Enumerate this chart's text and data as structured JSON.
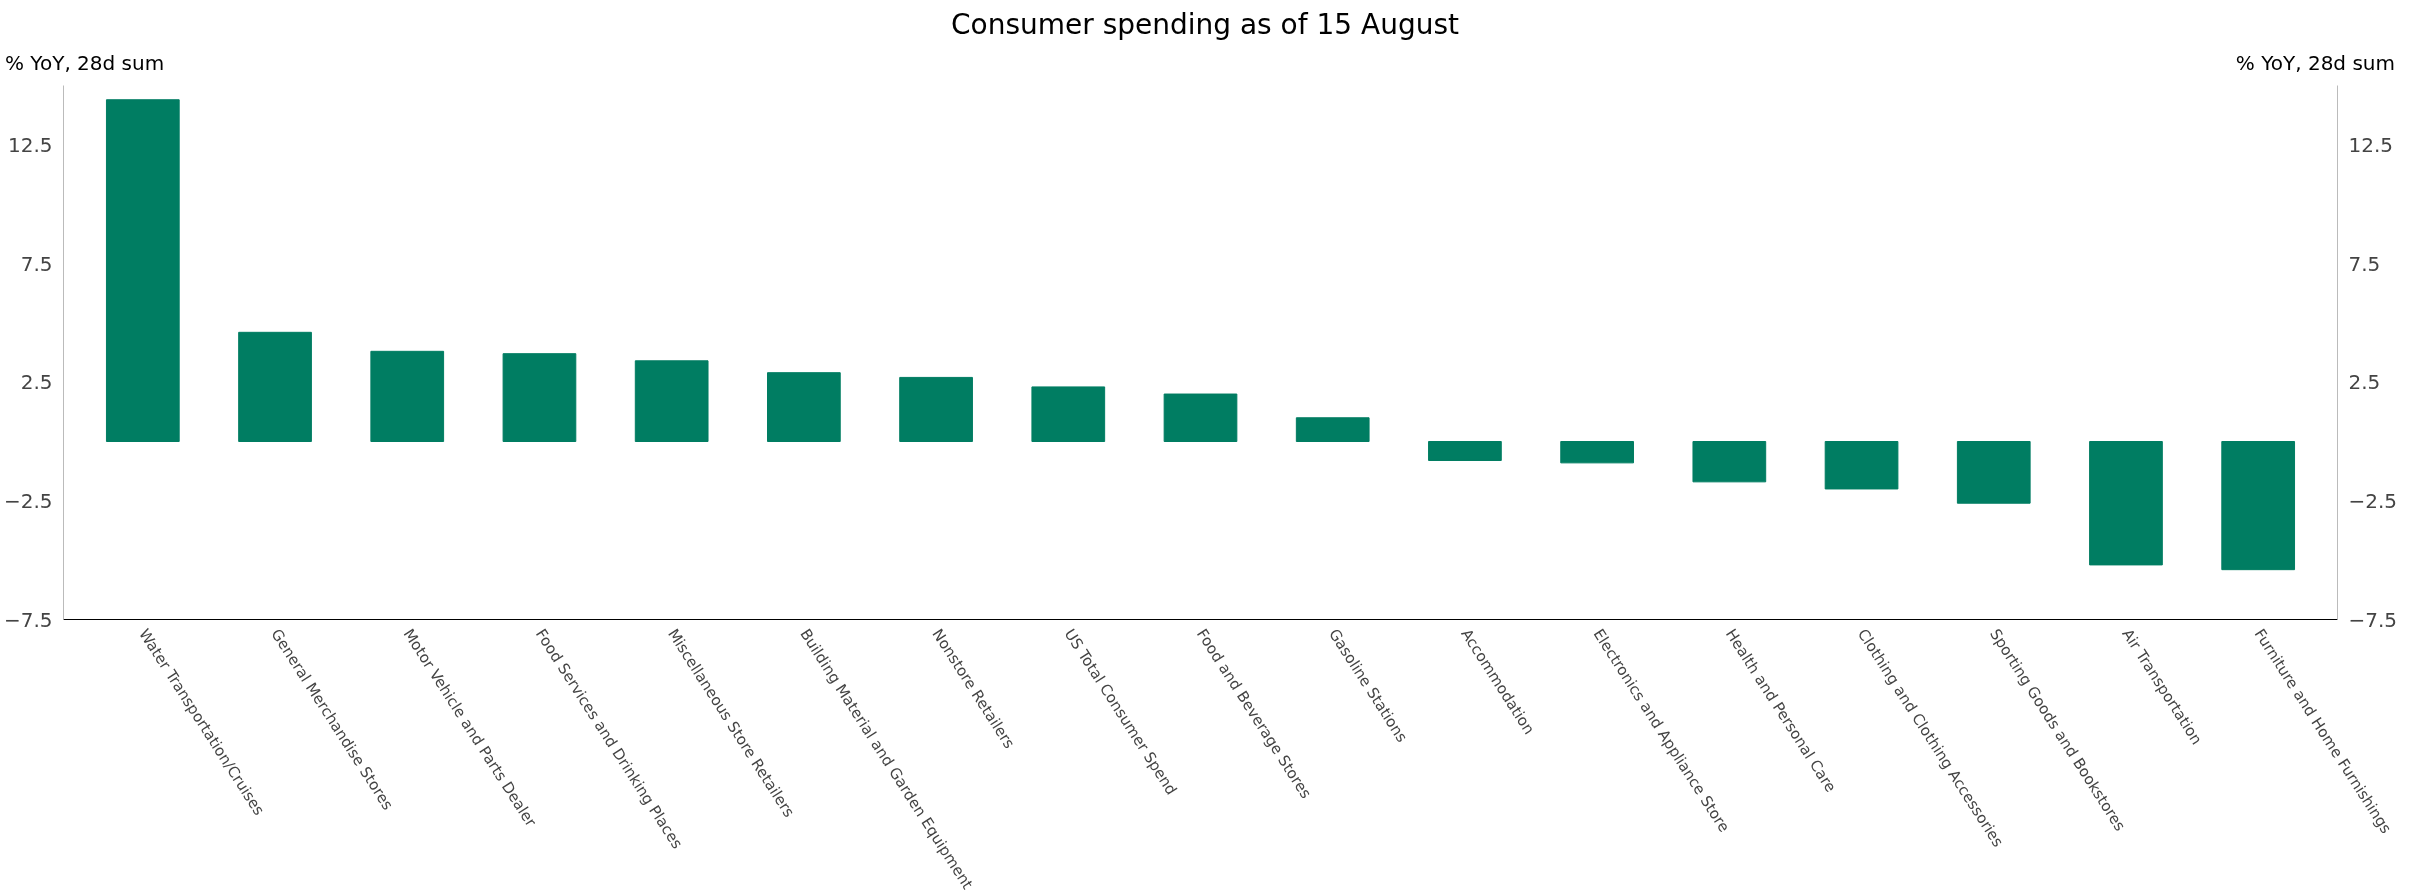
{
  "chart_data": {
    "type": "bar",
    "title": "Consumer spending as of 15 August",
    "ylabel": "% YoY, 28d sum",
    "y2label": "% YoY, 28d sum",
    "categories": [
      "Water Transportation/Cruises",
      "General Merchandise Stores",
      "Motor Vehicle and Parts Dealer",
      "Food Services and Drinking Places",
      "Miscellaneous Store Retailers",
      "Building Material and Garden Equipment",
      "Nonstore Retailers",
      "US Total Consumer Spend",
      "Food and Beverage Stores",
      "Gasoline Stations",
      "Accommodation",
      "Electronics and Appliance Store",
      "Health and Personal Care",
      "Clothing and Clothing Accessories",
      "Sporting Goods and Bookstores",
      "Air Transportation",
      "Furniture and Home Furnishings"
    ],
    "values": [
      14.4,
      4.6,
      3.8,
      3.7,
      3.4,
      2.9,
      2.7,
      2.3,
      2.0,
      1.0,
      -0.8,
      -0.9,
      -1.7,
      -2.0,
      -2.6,
      -5.2,
      -5.4
    ],
    "color": "#007d62",
    "ylim": [
      -7.5,
      15
    ],
    "yticks": [
      -7.5,
      -2.5,
      2.5,
      7.5,
      12.5
    ],
    "y2lim": [
      -7.5,
      15
    ],
    "y2ticks": [
      -7.5,
      -2.5,
      2.5,
      7.5,
      12.5
    ],
    "grid": false
  }
}
